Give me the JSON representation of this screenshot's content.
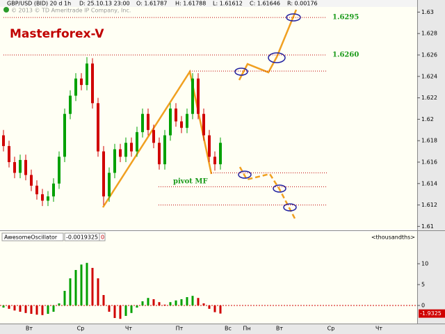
{
  "header": {
    "symbol": "GBP/USD (BID) 20 d 1h",
    "date": "D: 25.10.13 23:00",
    "open": "O: 1.61787",
    "high": "H: 1.61788",
    "low": "L: 1.61612",
    "close": "C: 1.61646",
    "range": "R: 0.00176",
    "copyright": "© 2013 © TD Ameritrade IP Company, Inc."
  },
  "chart_data": [
    {
      "type": "candlestick",
      "title": "Masterforex-V",
      "open": [
        1.6185,
        1.6175,
        1.616,
        1.615,
        1.6162,
        1.6148,
        1.6138,
        1.613,
        1.6124,
        1.6128,
        1.614,
        1.6165,
        1.6205,
        1.6222,
        1.6238,
        1.6232,
        1.6252,
        1.6215,
        1.617,
        1.6128,
        1.615,
        1.6172,
        1.6165,
        1.6178,
        1.617,
        1.6188,
        1.6205,
        1.619,
        1.6178,
        1.6158,
        1.6185,
        1.621,
        1.6198,
        1.6192,
        1.6205,
        1.6238,
        1.6205,
        1.6185,
        1.6165,
        1.6158
      ],
      "high": [
        1.619,
        1.618,
        1.6165,
        1.6167,
        1.6167,
        1.6153,
        1.6143,
        1.6135,
        1.6133,
        1.6145,
        1.617,
        1.621,
        1.6227,
        1.6243,
        1.6243,
        1.6258,
        1.6257,
        1.622,
        1.6175,
        1.6155,
        1.6177,
        1.6177,
        1.6183,
        1.6183,
        1.6193,
        1.621,
        1.621,
        1.6195,
        1.6183,
        1.619,
        1.6215,
        1.6215,
        1.6203,
        1.621,
        1.6243,
        1.6243,
        1.621,
        1.619,
        1.617,
        1.6183
      ],
      "low": [
        1.617,
        1.6155,
        1.6145,
        1.6145,
        1.6143,
        1.6133,
        1.6125,
        1.6119,
        1.6119,
        1.6123,
        1.6135,
        1.616,
        1.62,
        1.6217,
        1.6227,
        1.6227,
        1.621,
        1.6165,
        1.612,
        1.6123,
        1.6145,
        1.616,
        1.616,
        1.6165,
        1.6165,
        1.6183,
        1.6185,
        1.6173,
        1.6153,
        1.6153,
        1.618,
        1.6193,
        1.6187,
        1.6187,
        1.62,
        1.62,
        1.618,
        1.616,
        1.6152,
        1.6153
      ],
      "close": [
        1.6175,
        1.616,
        1.615,
        1.6162,
        1.6148,
        1.6138,
        1.613,
        1.6124,
        1.6128,
        1.614,
        1.6165,
        1.6205,
        1.6222,
        1.6238,
        1.6232,
        1.6252,
        1.6215,
        1.617,
        1.6128,
        1.615,
        1.6172,
        1.6165,
        1.6178,
        1.617,
        1.6188,
        1.6205,
        1.619,
        1.6178,
        1.6158,
        1.6185,
        1.621,
        1.6198,
        1.6192,
        1.6205,
        1.6238,
        1.6205,
        1.6185,
        1.6165,
        1.6158,
        1.6178
      ],
      "up_color": "#00a000",
      "down_color": "#d00000",
      "ylim": [
        1.6097,
        1.631
      ],
      "yticks": [
        1.61,
        1.612,
        1.614,
        1.616,
        1.618,
        1.62,
        1.622,
        1.624,
        1.626,
        1.628,
        1.63
      ],
      "levels": [
        1.6295,
        {
          "value": 1.626,
          "label": "1.6260"
        },
        1.6245,
        1.615,
        1.6137,
        1.612
      ],
      "level_color": "#c00000",
      "annotations": [
        "pivot MF"
      ],
      "x_labels": [
        "Вт",
        "Ср",
        "Чт",
        "Пт",
        "Вс",
        "Пн",
        "Вт",
        "Ср",
        "Чт"
      ]
    },
    {
      "type": "bar",
      "title": "AwesomeOscillator",
      "subtitle": "-0.0019325",
      "badge": "0",
      "unit_label": "<thousandths>",
      "values": [
        -0.5,
        -0.8,
        -1.2,
        -1.5,
        -1.8,
        -2.0,
        -2.2,
        -2.3,
        -2.0,
        -1.5,
        0.5,
        3.5,
        6.5,
        8.5,
        9.8,
        10.2,
        9.0,
        6.5,
        2.5,
        -1.5,
        -3.0,
        -3.2,
        -2.5,
        -1.8,
        -0.5,
        1.0,
        1.8,
        1.5,
        0.8,
        0.2,
        0.8,
        1.2,
        1.5,
        2.0,
        2.3,
        1.8,
        0.5,
        -0.8,
        -1.6,
        -1.9325
      ],
      "up_color": "#00a000",
      "down_color": "#d00000",
      "ylim": [
        -4.33,
        14.83
      ],
      "yticks": [
        0,
        5,
        10
      ]
    }
  ]
}
